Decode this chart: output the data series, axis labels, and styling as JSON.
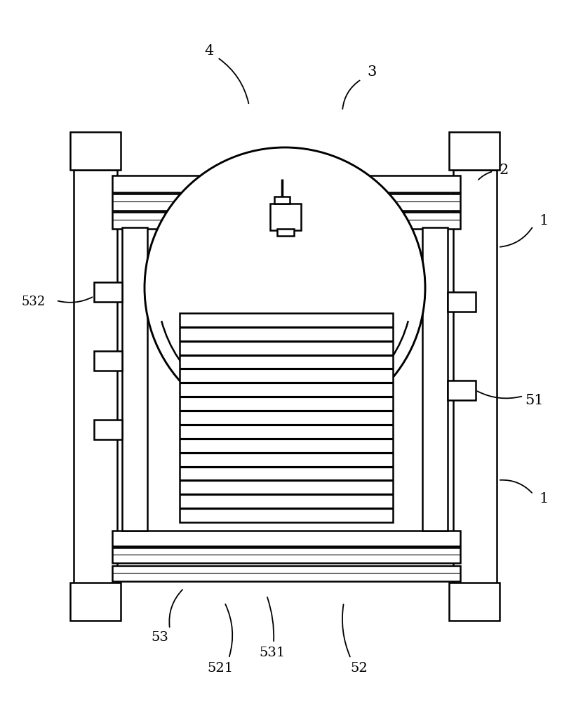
{
  "bg_color": "#ffffff",
  "lc": "#000000",
  "lw": 1.8,
  "tlw": 2.5,
  "fig_w": 8.12,
  "fig_h": 10.0,
  "dpi": 100
}
